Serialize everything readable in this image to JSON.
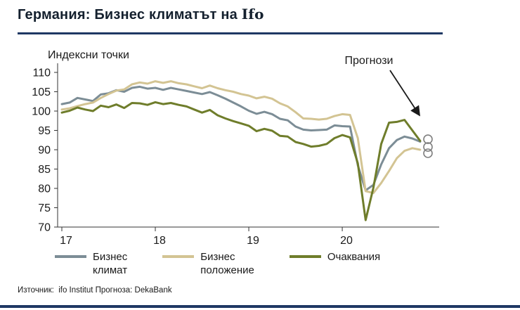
{
  "title": {
    "main": "Германия: Бизнес климатът на ",
    "suffix": "Ifo"
  },
  "y_axis_title": "Индексни точки",
  "annotation": "Прогнози",
  "source": "Източник:  ifo Institut Прогноза: DekaBank",
  "colors": {
    "accent_rule": "#1F3864",
    "climate": "#7C8D96",
    "situation": "#D3C493",
    "expectations": "#6F7D2B",
    "forecast_circle": "#7f7f7f"
  },
  "legend": [
    {
      "color_key": "climate",
      "lines": [
        "Бизнес",
        "климат"
      ]
    },
    {
      "color_key": "situation",
      "lines": [
        "Бизнес",
        "положение"
      ]
    },
    {
      "color_key": "expectations",
      "lines": [
        "Очаквания"
      ]
    }
  ],
  "chart_data": {
    "type": "line",
    "title": "Германия: Бизнес климатът на Ifo",
    "ylabel": "Индексни точки",
    "ylim": [
      70,
      110
    ],
    "y_ticks": [
      110,
      105,
      100,
      95,
      90,
      85,
      80,
      75,
      70
    ],
    "x_tick_labels": [
      "17",
      "18",
      "19",
      "20"
    ],
    "x_tick_positions": [
      0,
      12,
      24,
      36
    ],
    "points_per_year": 12,
    "grid": false,
    "legend_position": "bottom",
    "forecast_note": "last point of each series is a forecast shown as an open circle",
    "series": [
      {
        "name": "Бизнес климат",
        "color_key": "climate",
        "values": [
          101.8,
          102.2,
          103.4,
          103.0,
          102.6,
          104.3,
          104.6,
          105.4,
          105.0,
          106.0,
          106.3,
          105.8,
          106.0,
          105.5,
          106.0,
          105.6,
          105.2,
          104.8,
          104.4,
          104.9,
          104.1,
          103.2,
          102.2,
          101.2,
          100.1,
          99.3,
          99.8,
          99.2,
          98.0,
          97.6,
          96.0,
          95.2,
          95.0,
          95.1,
          95.2,
          96.3,
          96.1,
          96.0,
          86.0,
          79.5,
          80.9,
          86.2,
          90.4,
          92.5,
          93.4,
          92.9,
          92.1
        ],
        "forecast": 92.7
      },
      {
        "name": "Бизнес положение",
        "color_key": "situation",
        "values": [
          100.4,
          100.7,
          101.3,
          101.8,
          102.2,
          103.4,
          104.4,
          105.3,
          105.6,
          106.9,
          107.4,
          107.1,
          107.7,
          107.3,
          107.7,
          107.2,
          106.9,
          106.4,
          105.9,
          106.6,
          105.9,
          105.4,
          105.0,
          104.4,
          104.0,
          103.3,
          103.7,
          103.2,
          102.0,
          101.2,
          99.7,
          98.1,
          98.0,
          97.8,
          98.0,
          98.7,
          99.2,
          99.0,
          93.0,
          79.3,
          78.8,
          81.4,
          84.5,
          87.8,
          89.7,
          90.4,
          90.0
        ],
        "forecast": 90.7
      },
      {
        "name": "Очаквания",
        "color_key": "expectations",
        "values": [
          99.6,
          100.1,
          100.9,
          100.4,
          100.0,
          101.4,
          101.0,
          101.7,
          100.8,
          102.1,
          102.0,
          101.6,
          102.3,
          101.8,
          102.1,
          101.6,
          101.2,
          100.4,
          99.6,
          100.3,
          98.9,
          98.1,
          97.4,
          96.8,
          96.2,
          94.8,
          95.4,
          94.9,
          93.6,
          93.4,
          92.0,
          91.5,
          90.8,
          91.0,
          91.5,
          93.0,
          93.8,
          93.2,
          86.5,
          71.8,
          80.2,
          91.5,
          97.0,
          97.2,
          97.7,
          95.0,
          92.3
        ],
        "forecast": 89.1
      }
    ]
  }
}
